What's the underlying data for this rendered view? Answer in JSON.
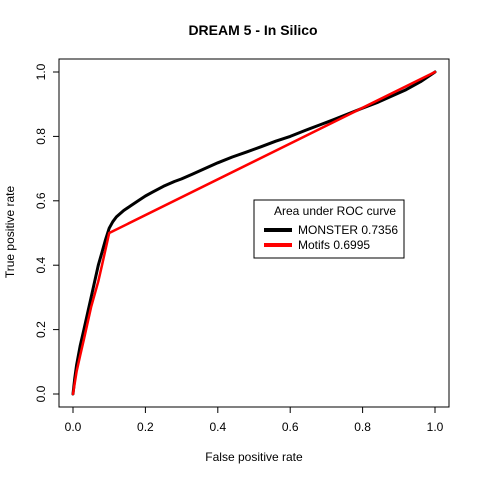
{
  "chart_data": {
    "type": "line",
    "title": "DREAM 5 - In Silico",
    "xlabel": "False positive rate",
    "ylabel": "True positive rate",
    "xlim": [
      0,
      1
    ],
    "ylim": [
      0,
      1
    ],
    "x_ticks": [
      "0.0",
      "0.2",
      "0.4",
      "0.6",
      "0.8",
      "1.0"
    ],
    "y_ticks": [
      "0.0",
      "0.2",
      "0.4",
      "0.6",
      "0.8",
      "1.0"
    ],
    "grid": false,
    "legend": {
      "title": "Area under ROC curve",
      "placement": "center-right",
      "entries": [
        "MONSTER 0.7356",
        "Motifs 0.6995"
      ]
    },
    "series": [
      {
        "name": "MONSTER 0.7356",
        "color": "#000000",
        "x": [
          0,
          0.005,
          0.01,
          0.02,
          0.03,
          0.04,
          0.05,
          0.06,
          0.07,
          0.08,
          0.09,
          0.1,
          0.11,
          0.12,
          0.14,
          0.16,
          0.18,
          0.2,
          0.22,
          0.25,
          0.28,
          0.3,
          0.33,
          0.36,
          0.4,
          0.44,
          0.48,
          0.52,
          0.56,
          0.6,
          0.64,
          0.68,
          0.72,
          0.76,
          0.8,
          0.84,
          0.88,
          0.92,
          0.96,
          1.0
        ],
        "y": [
          0,
          0.05,
          0.09,
          0.15,
          0.2,
          0.25,
          0.3,
          0.35,
          0.4,
          0.44,
          0.48,
          0.515,
          0.535,
          0.55,
          0.57,
          0.585,
          0.6,
          0.615,
          0.627,
          0.645,
          0.66,
          0.668,
          0.683,
          0.698,
          0.718,
          0.736,
          0.752,
          0.768,
          0.785,
          0.8,
          0.818,
          0.835,
          0.852,
          0.87,
          0.888,
          0.905,
          0.925,
          0.945,
          0.97,
          1.0
        ]
      },
      {
        "name": "Motifs 0.6995",
        "color": "#ff0000",
        "x": [
          0,
          0.01,
          0.02,
          0.03,
          0.04,
          0.05,
          0.06,
          0.07,
          0.08,
          0.09,
          0.1,
          1.0
        ],
        "y": [
          0,
          0.07,
          0.12,
          0.17,
          0.22,
          0.27,
          0.31,
          0.35,
          0.4,
          0.45,
          0.5,
          1.0
        ]
      }
    ]
  }
}
